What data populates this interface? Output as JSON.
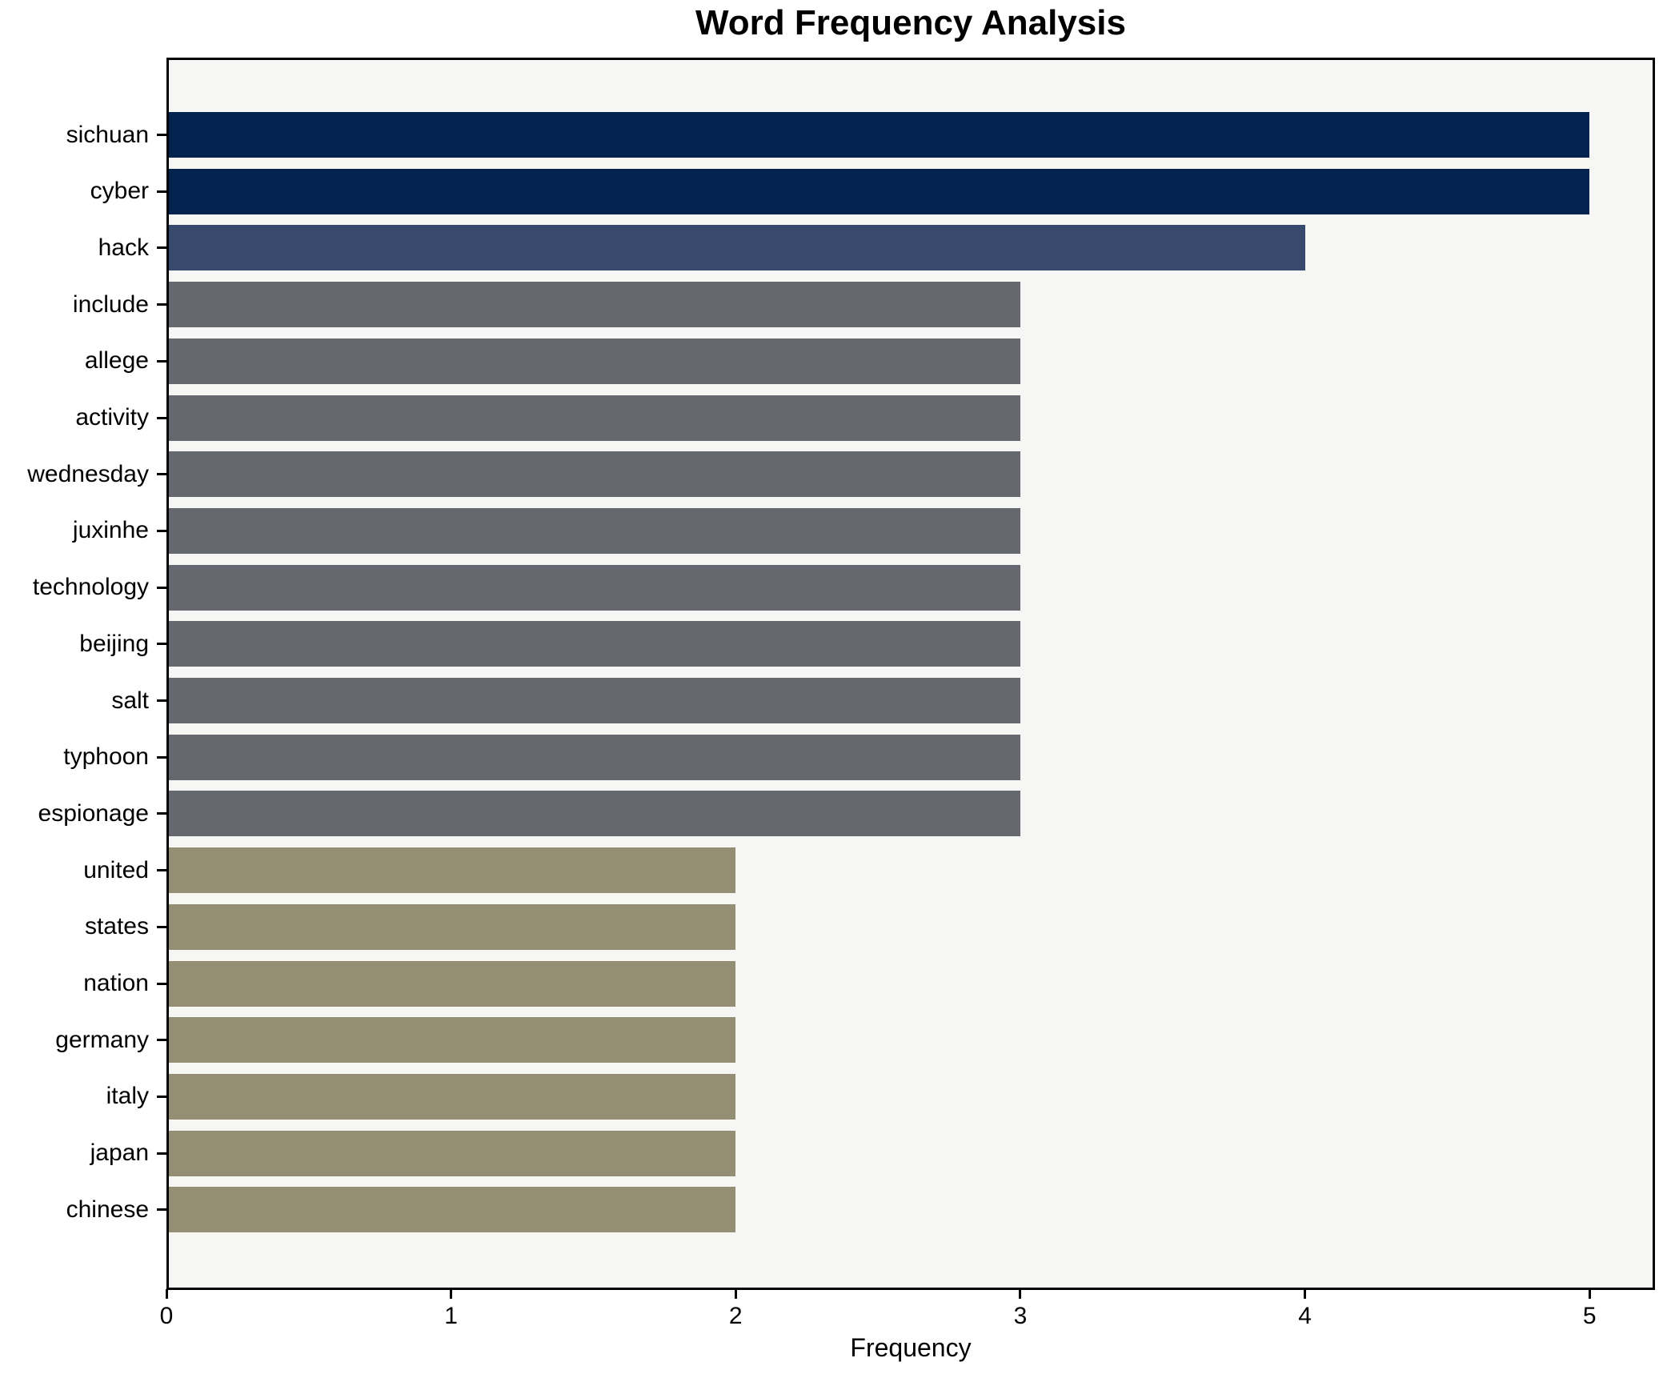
{
  "chart_data": {
    "type": "bar",
    "orientation": "horizontal",
    "title": "Word Frequency Analysis",
    "xlabel": "Frequency",
    "ylabel": "",
    "categories": [
      "sichuan",
      "cyber",
      "hack",
      "include",
      "allege",
      "activity",
      "wednesday",
      "juxinhe",
      "technology",
      "beijing",
      "salt",
      "typhoon",
      "espionage",
      "united",
      "states",
      "nation",
      "germany",
      "italy",
      "japan",
      "chinese"
    ],
    "values": [
      5,
      5,
      4,
      3,
      3,
      3,
      3,
      3,
      3,
      3,
      3,
      3,
      3,
      2,
      2,
      2,
      2,
      2,
      2,
      2
    ],
    "bar_colors": [
      "#03234e",
      "#03234e",
      "#374a6e",
      "#65696f",
      "#65696f",
      "#65696f",
      "#65696f",
      "#65696f",
      "#65696f",
      "#65696f",
      "#65696f",
      "#65696f",
      "#65696f",
      "#948e75",
      "#948e75",
      "#948e75",
      "#948e75",
      "#948e75",
      "#948e75",
      "#948e75"
    ],
    "xticks": [
      0,
      1,
      2,
      3,
      4,
      5
    ],
    "xlim": [
      0,
      5.23
    ],
    "grid": false,
    "legend": null,
    "colors": {
      "frequency_5": "#03234e",
      "frequency_4": "#374a6e",
      "frequency_3": "#65696f",
      "frequency_2": "#948e75",
      "plot_background": "#f6f6f4",
      "axis": "#000000"
    }
  }
}
